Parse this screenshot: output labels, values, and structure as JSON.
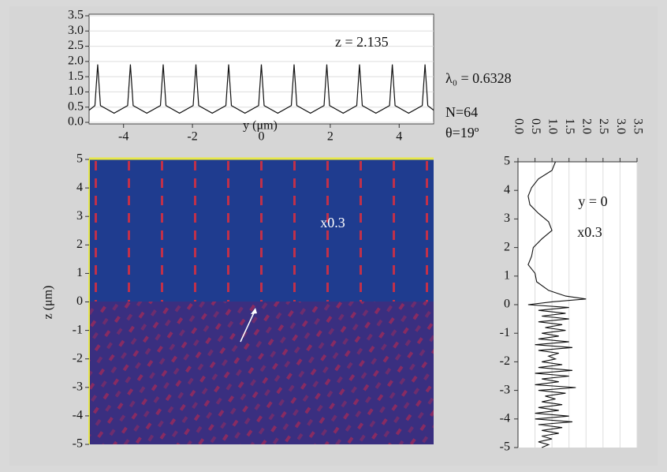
{
  "chart_data": [
    {
      "type": "line",
      "xlabel": "y (μm)",
      "annotations": [
        "z = 2.135",
        "λ₀ = 0.6328",
        "N=64",
        "θ=19º"
      ],
      "x": [
        -5,
        -4.83,
        -4.75,
        -4.67,
        -4.275,
        -3.88,
        -3.8,
        -3.72,
        -3.325,
        -2.93,
        -2.85,
        -2.77,
        -2.375,
        -1.98,
        -1.9,
        -1.82,
        -1.425,
        -1.03,
        -0.95,
        -0.87,
        -0.475,
        -0.08,
        0,
        0.08,
        0.475,
        0.87,
        0.95,
        1.03,
        1.425,
        1.82,
        1.9,
        1.98,
        2.375,
        2.77,
        2.85,
        2.93,
        3.325,
        3.72,
        3.8,
        3.88,
        4.275,
        4.67,
        4.75,
        4.83,
        5
      ],
      "values": [
        0.4,
        0.55,
        1.9,
        0.55,
        0.3,
        0.55,
        1.9,
        0.55,
        0.3,
        0.55,
        1.9,
        0.55,
        0.3,
        0.55,
        1.9,
        0.55,
        0.3,
        0.55,
        1.9,
        0.55,
        0.3,
        0.55,
        1.9,
        0.55,
        0.3,
        0.55,
        1.9,
        0.55,
        0.3,
        0.55,
        1.9,
        0.55,
        0.3,
        0.55,
        1.9,
        0.55,
        0.3,
        0.55,
        1.9,
        0.55,
        0.3,
        0.55,
        1.9,
        0.55,
        0.4
      ],
      "color": "#111111",
      "xlim": [
        -5,
        5
      ],
      "xticks": [
        -4,
        -2,
        0,
        2,
        4
      ],
      "ylim": [
        0,
        3.5
      ],
      "yticks": [
        {
          "value": 0,
          "label": "0.0"
        },
        {
          "value": 0.5,
          "label": "0.5"
        },
        {
          "value": 1,
          "label": "1.0"
        },
        {
          "value": 1.5,
          "label": "1.5"
        },
        {
          "value": 2,
          "label": "2.0"
        },
        {
          "value": 2.5,
          "label": "2.5"
        },
        {
          "value": 3,
          "label": "3.0"
        },
        {
          "value": 3.5,
          "label": "3.5"
        }
      ],
      "grid": true
    },
    {
      "type": "heatmap",
      "ylabel": "z (μm)",
      "annotations": [
        "x0.3"
      ],
      "xlim": [
        -5,
        5
      ],
      "ylim": [
        -5,
        5
      ],
      "yticks": [
        -5,
        -4,
        -3,
        -2,
        -1,
        0,
        1,
        2,
        3,
        4,
        5
      ]
    },
    {
      "type": "line",
      "orientation": "vertical",
      "annotations": [
        "y = 0",
        "x0.3"
      ],
      "x": [
        5,
        4.7,
        4.4,
        4.1,
        3.8,
        3.5,
        3.2,
        2.9,
        2.6,
        2.3,
        2.0,
        1.7,
        1.4,
        1.1,
        0.8,
        0.5,
        0.3,
        0.2,
        0.1,
        0,
        -0.1,
        -0.2,
        -0.3,
        -0.4,
        -0.5,
        -0.6,
        -0.7,
        -0.8,
        -0.9,
        -1.0,
        -1.1,
        -1.2,
        -1.3,
        -1.4,
        -1.5,
        -1.6,
        -1.7,
        -1.8,
        -1.9,
        -2.0,
        -2.1,
        -2.2,
        -2.3,
        -2.4,
        -2.5,
        -2.6,
        -2.7,
        -2.8,
        -2.9,
        -3.0,
        -3.1,
        -3.2,
        -3.3,
        -3.4,
        -3.5,
        -3.6,
        -3.7,
        -3.8,
        -3.9,
        -4.0,
        -4.1,
        -4.2,
        -4.3,
        -4.4,
        -4.5,
        -4.6,
        -4.7,
        -4.8,
        -4.9,
        -5
      ],
      "values": [
        1.1,
        1.0,
        0.6,
        0.4,
        0.3,
        0.35,
        0.6,
        0.9,
        1.0,
        0.7,
        0.45,
        0.4,
        0.3,
        0.5,
        0.55,
        0.9,
        1.4,
        2.0,
        1.0,
        0.3,
        1.5,
        0.6,
        1.4,
        0.7,
        1.5,
        0.6,
        1.3,
        0.8,
        1.4,
        0.7,
        1.2,
        0.6,
        1.5,
        0.5,
        1.6,
        0.6,
        1.2,
        0.9,
        1.1,
        0.7,
        1.3,
        0.6,
        1.6,
        0.5,
        1.5,
        0.7,
        1.2,
        0.5,
        1.7,
        0.6,
        1.4,
        0.8,
        1.1,
        0.7,
        1.3,
        0.6,
        1.2,
        0.5,
        1.5,
        0.5,
        1.6,
        0.6,
        1.3,
        0.7,
        1.2,
        0.7,
        1.0,
        0.6,
        0.9,
        0.7
      ],
      "color": "#111111",
      "xlim": [
        -5,
        5
      ],
      "xticks": [
        -5,
        -4,
        -3,
        -2,
        -1,
        0,
        1,
        2,
        3,
        4,
        5
      ],
      "ylim": [
        0,
        3.5
      ],
      "yticks": [
        {
          "value": 0,
          "label": "0.0"
        },
        {
          "value": 0.5,
          "label": "0.5"
        },
        {
          "value": 1,
          "label": "1.0"
        },
        {
          "value": 1.5,
          "label": "1.5"
        },
        {
          "value": 2,
          "label": "2.0"
        },
        {
          "value": 2.5,
          "label": "2.5"
        },
        {
          "value": 3,
          "label": "3.0"
        },
        {
          "value": 3.5,
          "label": "3.5"
        }
      ],
      "grid": true
    }
  ]
}
